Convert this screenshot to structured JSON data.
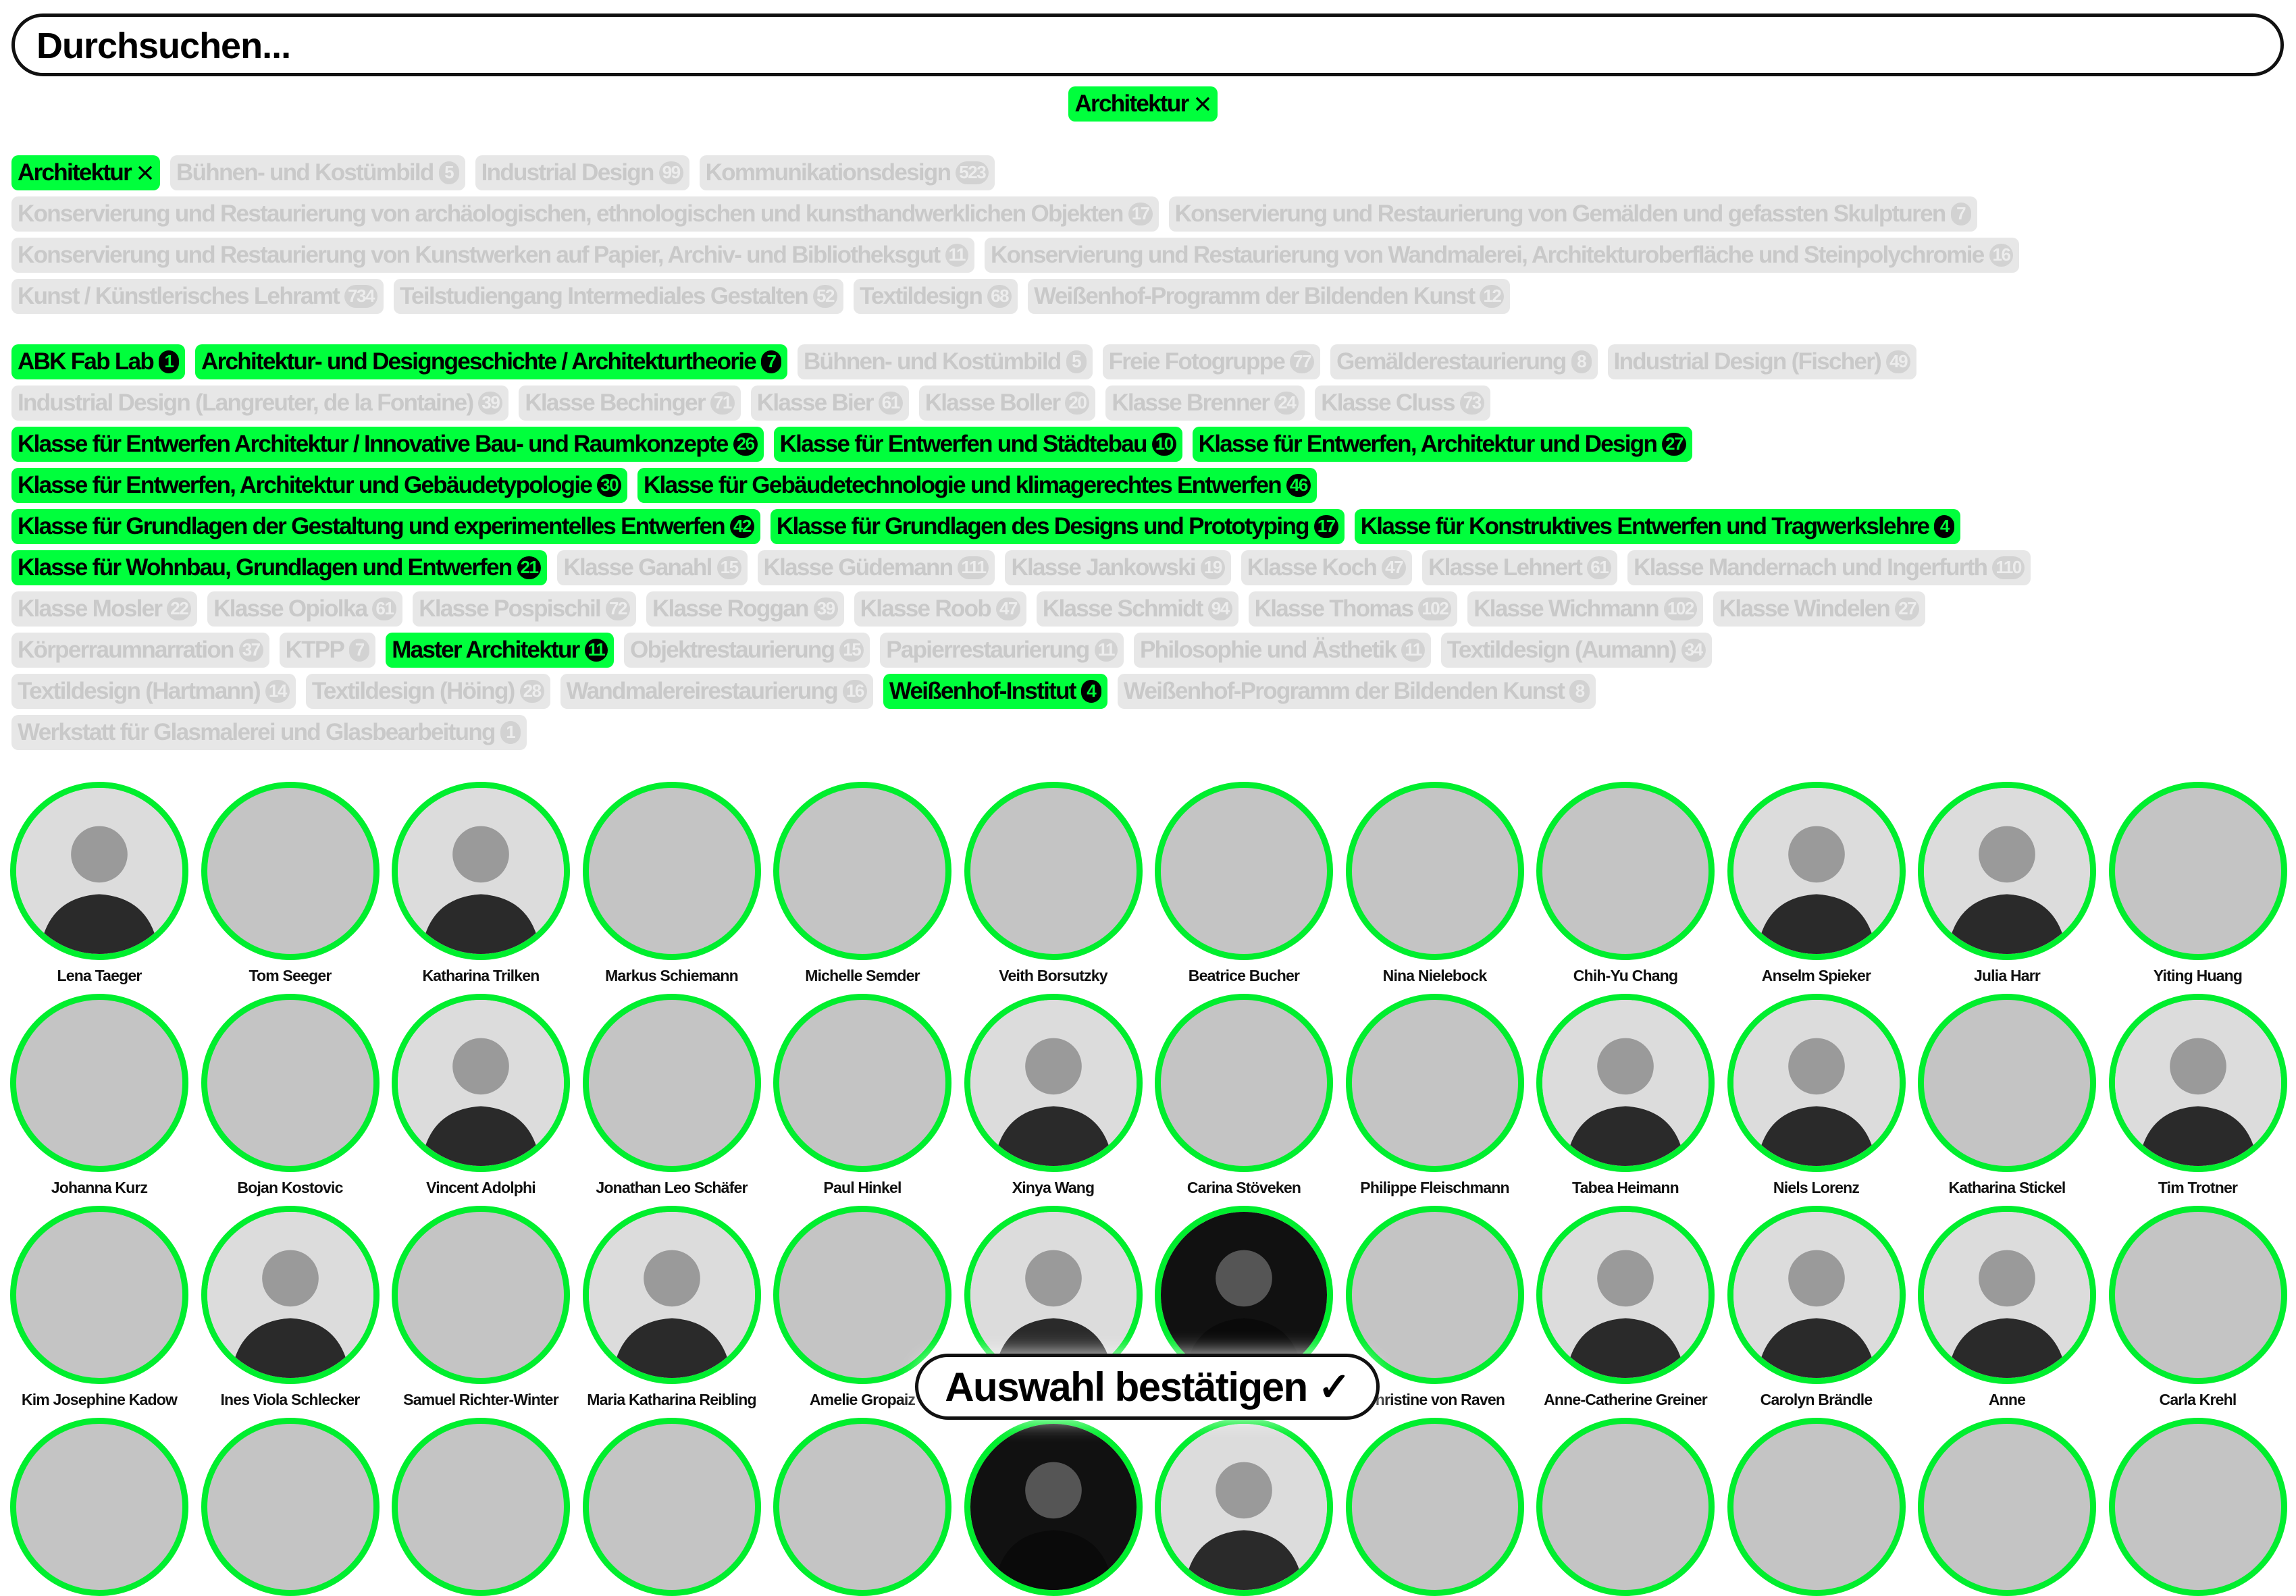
{
  "search": {
    "placeholder": "Durchsuchen..."
  },
  "selected_filters": [
    {
      "label": "Architektur",
      "icon": "close-icon"
    }
  ],
  "colors": {
    "active": "#00ff3c",
    "inactive_bg": "#e7e7e7",
    "inactive_text": "#c9c9c9",
    "ring": "#00ee2e"
  },
  "programs": {
    "rows": [
      [
        {
          "label": "Architektur",
          "active": true,
          "removable": true
        },
        {
          "label": "Bühnen- und Kostümbild",
          "count": "5"
        },
        {
          "label": "Industrial Design",
          "count": "99"
        },
        {
          "label": "Kommunikationsdesign",
          "count": "523"
        }
      ],
      [
        {
          "label": "Konservierung und Restaurierung von archäologischen, ethnologischen und kunsthandwerklichen Objekten",
          "count": "17"
        },
        {
          "label": "Konservierung und Restaurierung von Gemälden und gefassten Skulpturen",
          "count": "7"
        }
      ],
      [
        {
          "label": "Konservierung und Restaurierung von Kunstwerken auf Papier, Archiv- und Bibliotheksgut",
          "count": "11"
        },
        {
          "label": "Konservierung und Restaurierung von Wandmalerei, Architekturoberfläche und Steinpolychromie",
          "count": "16"
        }
      ],
      [
        {
          "label": "Kunst / Künstlerisches Lehramt",
          "count": "734"
        },
        {
          "label": "Teilstudiengang Intermediales Gestalten",
          "count": "52"
        },
        {
          "label": "Textildesign",
          "count": "68"
        },
        {
          "label": "Weißenhof-Programm der Bildenden Kunst",
          "count": "12"
        }
      ]
    ]
  },
  "classes": {
    "rows": [
      [
        {
          "label": "ABK Fab Lab",
          "count": "1",
          "active": true
        },
        {
          "label": "Architektur- und Designgeschichte / Architekturtheorie",
          "count": "7",
          "active": true
        },
        {
          "label": "Bühnen- und Kostümbild",
          "count": "5"
        },
        {
          "label": "Freie Fotogruppe",
          "count": "77"
        },
        {
          "label": "Gemälderestaurierung",
          "count": "8"
        },
        {
          "label": "Industrial Design (Fischer)",
          "count": "49"
        }
      ],
      [
        {
          "label": "Industrial Design (Langreuter, de la Fontaine)",
          "count": "39"
        },
        {
          "label": "Klasse Bechinger",
          "count": "71"
        },
        {
          "label": "Klasse Bier",
          "count": "61"
        },
        {
          "label": "Klasse Boller",
          "count": "20"
        },
        {
          "label": "Klasse Brenner",
          "count": "24"
        },
        {
          "label": "Klasse Cluss",
          "count": "73"
        }
      ],
      [
        {
          "label": "Klasse für Entwerfen Architektur / Innovative Bau- und Raumkonzepte",
          "count": "26",
          "active": true
        },
        {
          "label": "Klasse für Entwerfen und Städtebau",
          "count": "10",
          "active": true
        },
        {
          "label": "Klasse für Entwerfen, Architektur und Design",
          "count": "27",
          "active": true
        }
      ],
      [
        {
          "label": "Klasse für Entwerfen, Architektur und Gebäudetypologie",
          "count": "30",
          "active": true
        },
        {
          "label": "Klasse für Gebäudetechnologie und klimagerechtes Entwerfen",
          "count": "46",
          "active": true
        }
      ],
      [
        {
          "label": "Klasse für Grundlagen der Gestaltung und experimentelles Entwerfen",
          "count": "42",
          "active": true
        },
        {
          "label": "Klasse für Grundlagen des Designs und Prototyping",
          "count": "17",
          "active": true
        },
        {
          "label": "Klasse für Konstruktives Entwerfen und Tragwerkslehre",
          "count": "4",
          "active": true
        }
      ],
      [
        {
          "label": "Klasse für Wohnbau, Grundlagen und Entwerfen",
          "count": "21",
          "active": true
        },
        {
          "label": "Klasse Ganahl",
          "count": "15"
        },
        {
          "label": "Klasse Güdemann",
          "count": "111"
        },
        {
          "label": "Klasse Jankowski",
          "count": "19"
        },
        {
          "label": "Klasse Koch",
          "count": "47"
        },
        {
          "label": "Klasse Lehnert",
          "count": "61"
        },
        {
          "label": "Klasse Mandernach und Ingerfurth",
          "count": "110"
        }
      ],
      [
        {
          "label": "Klasse Mosler",
          "count": "22"
        },
        {
          "label": "Klasse Opiolka",
          "count": "61"
        },
        {
          "label": "Klasse Pospischil",
          "count": "72"
        },
        {
          "label": "Klasse Roggan",
          "count": "39"
        },
        {
          "label": "Klasse Roob",
          "count": "47"
        },
        {
          "label": "Klasse Schmidt",
          "count": "94"
        },
        {
          "label": "Klasse Thomas",
          "count": "102"
        },
        {
          "label": "Klasse Wichmann",
          "count": "102"
        },
        {
          "label": "Klasse Windelen",
          "count": "27"
        }
      ],
      [
        {
          "label": "Körperraumnarration",
          "count": "37"
        },
        {
          "label": "KTPP",
          "count": "7"
        },
        {
          "label": "Master Architektur",
          "count": "11",
          "active": true
        },
        {
          "label": "Objektrestaurierung",
          "count": "15"
        },
        {
          "label": "Papierrestaurierung",
          "count": "11"
        },
        {
          "label": "Philosophie und Ästhetik",
          "count": "11"
        },
        {
          "label": "Textildesign (Aumann)",
          "count": "34"
        }
      ],
      [
        {
          "label": "Textildesign (Hartmann)",
          "count": "14"
        },
        {
          "label": "Textildesign (Höing)",
          "count": "28"
        },
        {
          "label": "Wandmalereirestaurierung",
          "count": "16"
        },
        {
          "label": "Weißenhof-Institut",
          "count": "4",
          "active": true
        },
        {
          "label": "Weißenhof-Programm der Bildenden Kunst",
          "count": "8"
        }
      ],
      [
        {
          "label": "Werkstatt für Glasmalerei und Glasbearbeitung",
          "count": "1"
        }
      ]
    ]
  },
  "people": [
    [
      {
        "name": "Lena Taeger",
        "photo": true
      },
      {
        "name": "Tom Seeger"
      },
      {
        "name": "Katharina Trilken",
        "photo": true
      },
      {
        "name": "Markus Schiemann"
      },
      {
        "name": "Michelle Semder"
      },
      {
        "name": "Veith Borsutzky"
      },
      {
        "name": "Beatrice Bucher"
      },
      {
        "name": "Nina Nielebock"
      },
      {
        "name": "Chih-Yu Chang"
      },
      {
        "name": "Anselm Spieker",
        "photo": true
      },
      {
        "name": "Julia Harr",
        "photo": true
      },
      {
        "name": "Yiting Huang"
      }
    ],
    [
      {
        "name": "Johanna Kurz"
      },
      {
        "name": "Bojan Kostovic"
      },
      {
        "name": "Vincent Adolphi",
        "photo": true
      },
      {
        "name": "Jonathan Leo Schäfer"
      },
      {
        "name": "Paul Hinkel"
      },
      {
        "name": "Xinya Wang",
        "photo": true
      },
      {
        "name": "Carina Stöveken"
      },
      {
        "name": "Philippe Fleischmann"
      },
      {
        "name": "Tabea Heimann",
        "photo": true
      },
      {
        "name": "Niels Lorenz",
        "photo": true
      },
      {
        "name": "Katharina Stickel"
      },
      {
        "name": "Tim Trotner",
        "photo": true
      }
    ],
    [
      {
        "name": "Kim Josephine Kadow"
      },
      {
        "name": "Ines Viola Schlecker",
        "photo": true
      },
      {
        "name": "Samuel Richter-Winter"
      },
      {
        "name": "Maria Katharina Reibling",
        "photo": true
      },
      {
        "name": "Amelie Gropaiz"
      },
      {
        "name": "",
        "photo": true
      },
      {
        "name": "",
        "photo": true,
        "dark": true
      },
      {
        "name": "Christine von Raven"
      },
      {
        "name": "Anne-Catherine Greiner",
        "photo": true
      },
      {
        "name": "Carolyn Brändle",
        "photo": true
      },
      {
        "name": "Anne",
        "photo": true
      },
      {
        "name": "Carla Krehl"
      }
    ],
    [
      {
        "name": ""
      },
      {
        "name": ""
      },
      {
        "name": ""
      },
      {
        "name": ""
      },
      {
        "name": ""
      },
      {
        "name": "",
        "photo": true,
        "dark": true
      },
      {
        "name": "",
        "photo": true
      },
      {
        "name": ""
      },
      {
        "name": ""
      },
      {
        "name": ""
      },
      {
        "name": ""
      },
      {
        "name": ""
      }
    ]
  ],
  "confirm": {
    "label": "Auswahl bestätigen",
    "icon": "check-icon",
    "glyph": "✓"
  }
}
